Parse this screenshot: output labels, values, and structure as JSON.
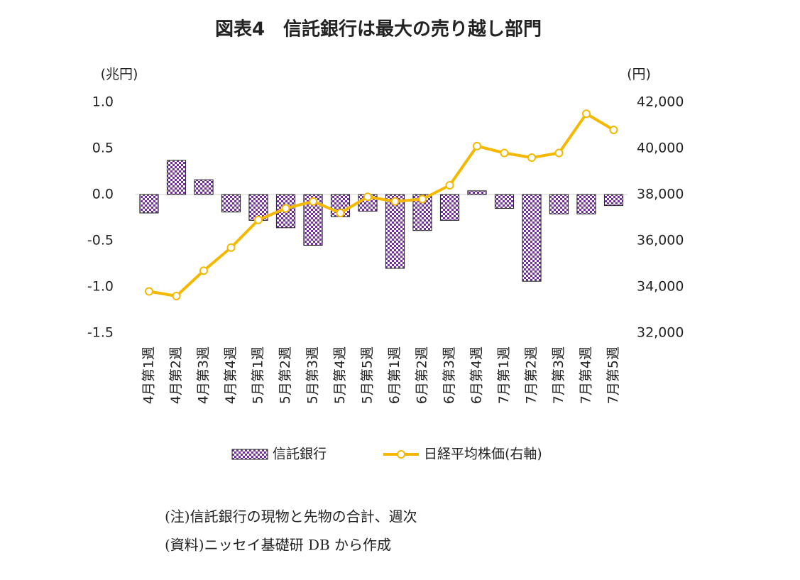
{
  "chart_data": {
    "type": "bar-line",
    "title": "図表4　信託銀行は最大の売り越し部門",
    "y_label": "(兆円)",
    "y2_label": "(円)",
    "categories": [
      "4月第1週",
      "4月第2週",
      "4月第3週",
      "4月第4週",
      "5月第1週",
      "5月第2週",
      "5月第3週",
      "5月第4週",
      "5月第5週",
      "6月第1週",
      "6月第2週",
      "6月第3週",
      "6月第4週",
      "7月第1週",
      "7月第2週",
      "7月第3週",
      "7月第4週",
      "7月第5週"
    ],
    "series": [
      {
        "name": "信託銀行",
        "type": "bar",
        "color": "#7030a0",
        "values": [
          -0.2,
          0.37,
          0.16,
          -0.19,
          -0.28,
          -0.36,
          -0.55,
          -0.24,
          -0.18,
          -0.8,
          -0.39,
          -0.28,
          0.04,
          -0.15,
          -0.94,
          -0.21,
          -0.21,
          -0.12
        ]
      },
      {
        "name": "日経平均株価(右軸)",
        "type": "line",
        "color": "#f5b800",
        "axis": "y2",
        "values": [
          33800,
          33600,
          34700,
          35700,
          36900,
          37400,
          37700,
          37200,
          37900,
          37700,
          37800,
          38400,
          40100,
          39800,
          39600,
          39800,
          41500,
          40800
        ]
      }
    ],
    "ylim": [
      -1.5,
      1.0
    ],
    "yticks": [
      {
        "value": 1,
        "label": "1.0"
      },
      0.5,
      {
        "value": 0,
        "label": "0.0"
      },
      -0.5,
      {
        "value": -1,
        "label": "-1.0"
      },
      -1.5
    ],
    "y2lim": [
      32000,
      42000
    ],
    "y2ticks": [
      {
        "value": 42000,
        "label": "42,000"
      },
      {
        "value": 40000,
        "label": "40,000"
      },
      {
        "value": 38000,
        "label": "38,000"
      },
      {
        "value": 36000,
        "label": "36,000"
      },
      {
        "value": 34000,
        "label": "34,000"
      },
      {
        "value": 32000,
        "label": "32,000"
      }
    ],
    "grid": false,
    "notes": [
      "(注)信託銀行の現物と先物の合計、週次",
      "(資料)ニッセイ基礎研 DB から作成"
    ]
  }
}
